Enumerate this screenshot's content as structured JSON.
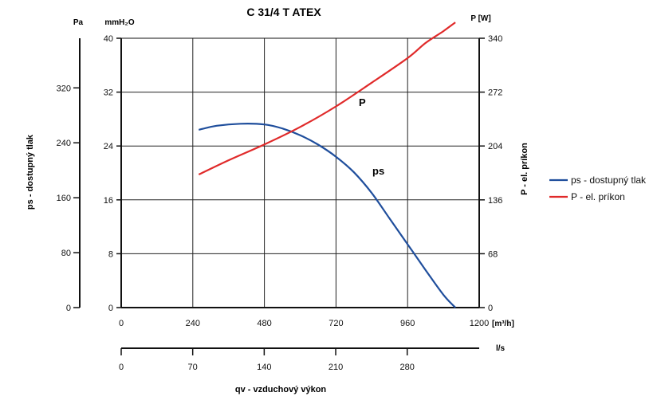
{
  "chart_data": {
    "type": "line",
    "title": "C 31/4 T ATEX",
    "x_axis": {
      "unit": "[m³/h]",
      "range": [
        0,
        1200
      ],
      "ticks": [
        0,
        240,
        480,
        720,
        960,
        1200
      ]
    },
    "x2_axis": {
      "unit": "l/s",
      "ticks": [
        0,
        70,
        140,
        210,
        280
      ]
    },
    "xlabel": "qv - vzduchový výkon",
    "y_left_pa": {
      "label": "ps - dostupný tlak",
      "unit": "Pa",
      "ticks": [
        0,
        80,
        160,
        240,
        320
      ]
    },
    "y_left_mmh2o": {
      "unit": "mmH₂O",
      "range": [
        0,
        40
      ],
      "ticks": [
        0,
        8,
        16,
        24,
        32,
        40
      ]
    },
    "y_right": {
      "label": "P - el. príkon",
      "unit": "P [W]",
      "range": [
        0,
        340
      ],
      "ticks": [
        0,
        68,
        136,
        204,
        272,
        340
      ]
    },
    "grid": true,
    "legend_position": "right",
    "series": [
      {
        "name": "ps - dostupný tlak",
        "curve_label": "ps",
        "color": "#1f4e9c",
        "axis": "mmH2O",
        "x": [
          260,
          320,
          400,
          480,
          540,
          600,
          660,
          720,
          780,
          840,
          900,
          960,
          1020,
          1080,
          1120
        ],
        "y": [
          26.4,
          27.0,
          27.3,
          27.2,
          26.6,
          25.6,
          24.2,
          22.4,
          20.1,
          17.0,
          13.2,
          9.4,
          5.6,
          1.9,
          0
        ]
      },
      {
        "name": "P - el. príkon",
        "curve_label": "P",
        "color": "#e02a2a",
        "axis": "W",
        "x": [
          260,
          360,
          480,
          600,
          720,
          840,
          960,
          1020,
          1080,
          1120
        ],
        "y": [
          168,
          186,
          206,
          228,
          254,
          284,
          315,
          334,
          349,
          360
        ]
      }
    ]
  }
}
